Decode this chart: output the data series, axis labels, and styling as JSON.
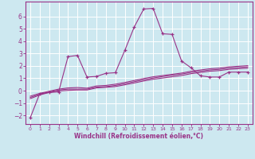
{
  "bg_color": "#cde8f0",
  "grid_color": "#ffffff",
  "line_color": "#993388",
  "marker": "+",
  "xlabel": "Windchill (Refroidissement éolien,°C)",
  "xlim": [
    -0.5,
    23.5
  ],
  "ylim": [
    -2.7,
    7.2
  ],
  "xticks": [
    0,
    1,
    2,
    3,
    4,
    5,
    6,
    7,
    8,
    9,
    10,
    11,
    12,
    13,
    14,
    15,
    16,
    17,
    18,
    19,
    20,
    21,
    22,
    23
  ],
  "yticks": [
    -2,
    -1,
    0,
    1,
    2,
    3,
    4,
    5,
    6
  ],
  "main_x": [
    0,
    1,
    2,
    3,
    4,
    5,
    6,
    7,
    8,
    9,
    10,
    11,
    12,
    13,
    14,
    15,
    16,
    17,
    18,
    19,
    20,
    21,
    22,
    23
  ],
  "main_y": [
    -2.2,
    -0.25,
    -0.15,
    -0.1,
    2.75,
    2.85,
    1.1,
    1.15,
    1.4,
    1.45,
    3.25,
    5.15,
    6.6,
    6.65,
    4.6,
    4.55,
    2.4,
    1.85,
    1.2,
    1.1,
    1.1,
    1.5,
    1.5,
    1.5
  ],
  "line2_x": [
    0,
    1,
    2,
    3,
    4,
    5,
    6,
    7,
    8,
    9,
    10,
    11,
    12,
    13,
    14,
    15,
    16,
    17,
    18,
    19,
    20,
    21,
    22,
    23
  ],
  "line2_y": [
    -0.55,
    -0.3,
    -0.1,
    0.05,
    0.12,
    0.12,
    0.12,
    0.28,
    0.32,
    0.42,
    0.56,
    0.72,
    0.88,
    1.02,
    1.14,
    1.24,
    1.34,
    1.47,
    1.57,
    1.67,
    1.72,
    1.82,
    1.87,
    1.92
  ],
  "line3_x": [
    0,
    1,
    2,
    3,
    4,
    5,
    6,
    7,
    8,
    9,
    10,
    11,
    12,
    13,
    14,
    15,
    16,
    17,
    18,
    19,
    20,
    21,
    22,
    23
  ],
  "line3_y": [
    -0.65,
    -0.35,
    -0.15,
    -0.03,
    0.02,
    0.05,
    0.05,
    0.22,
    0.27,
    0.33,
    0.47,
    0.62,
    0.78,
    0.92,
    1.02,
    1.12,
    1.22,
    1.37,
    1.47,
    1.57,
    1.62,
    1.72,
    1.77,
    1.82
  ],
  "line4_x": [
    0,
    1,
    2,
    3,
    4,
    5,
    6,
    7,
    8,
    9,
    10,
    11,
    12,
    13,
    14,
    15,
    16,
    17,
    18,
    19,
    20,
    21,
    22,
    23
  ],
  "line4_y": [
    -0.45,
    -0.22,
    -0.05,
    0.12,
    0.22,
    0.25,
    0.2,
    0.38,
    0.42,
    0.52,
    0.66,
    0.82,
    0.98,
    1.12,
    1.22,
    1.32,
    1.42,
    1.57,
    1.67,
    1.77,
    1.82,
    1.92,
    1.97,
    2.02
  ]
}
